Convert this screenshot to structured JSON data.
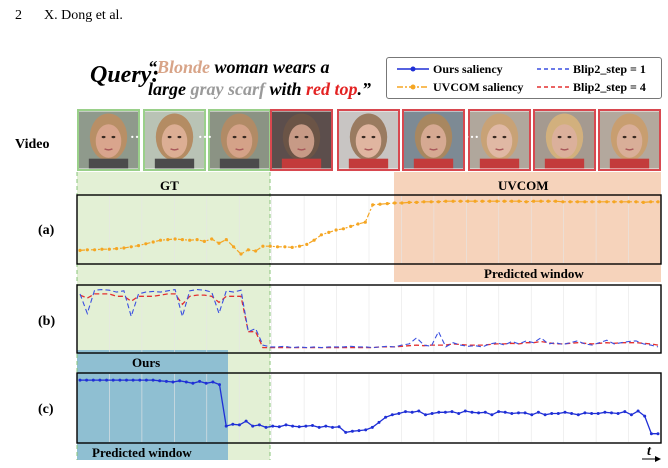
{
  "page_header": {
    "number": "2",
    "authors": "X. Dong et al."
  },
  "query": {
    "label": "Query:",
    "open_quote": "“",
    "word_blonde": "Blonde",
    "part1": " woman wears a",
    "part2": "large ",
    "word_gray_scarf": "gray scarf",
    "part3": " with ",
    "word_red_top": "red top",
    "close_quote": ".”"
  },
  "legend": [
    {
      "label": "Ours saliency",
      "color": "#1f2fd6",
      "style": "solid-dot"
    },
    {
      "label": "Blip2_step = 1",
      "color": "#3a4fe0",
      "style": "dashed"
    },
    {
      "label": "UVCOM saliency",
      "color": "#f5a623",
      "style": "dashdot-dot"
    },
    {
      "label": "Blip2_step = 4",
      "color": "#e33030",
      "style": "dashed"
    }
  ],
  "video_label": "Video",
  "frames": [
    {
      "border": "green",
      "skin": "#d9a58d",
      "bg": "#8f9a8c",
      "hair": "#b88f66"
    },
    {
      "border": "green",
      "skin": "#dcae94",
      "bg": "#b9c3b5",
      "hair": "#b48c63"
    },
    {
      "border": "green",
      "skin": "#d4a288",
      "bg": "#8b9384",
      "hair": "#b18b66"
    },
    {
      "border": "red",
      "skin": "#c79a86",
      "bg": "#5c4e4c",
      "hair": "#6b5446"
    },
    {
      "border": "red",
      "skin": "#e0b5a0",
      "bg": "#c8c5c3",
      "hair": "#9a7b60"
    },
    {
      "border": "red",
      "skin": "#d6a992",
      "bg": "#7d8a94",
      "hair": "#a88760"
    },
    {
      "border": "red",
      "skin": "#e0b8a4",
      "bg": "#b0a79c",
      "hair": "#c8a276"
    },
    {
      "border": "red",
      "skin": "#dbb09b",
      "bg": "#a59a90",
      "hair": "#d2b07d"
    },
    {
      "border": "red",
      "skin": "#d9ae98",
      "bg": "#b3a89d",
      "hair": "#c89e70"
    }
  ],
  "dots_between": "…",
  "gt_label": "GT",
  "uvcom_label": "UVCOM",
  "predicted_window_label": "Predicted window",
  "ours_label": "Ours",
  "row_labels": [
    "(a)",
    "(b)",
    "(c)"
  ],
  "time_label": "t",
  "colors": {
    "gt_band": "#e3f0d5",
    "uvcom_band": "#f6d3bb",
    "ours_band": "#8fbfd2",
    "ours_line": "#1f2fd6",
    "uvcom_line": "#f5a623",
    "blip1_line": "#3a4fe0",
    "blip4_line": "#e33030"
  },
  "chart_data": [
    {
      "type": "line",
      "panel": "(a)",
      "series": [
        {
          "name": "UVCOM saliency",
          "values": [
            0.16,
            0.17,
            0.17,
            0.18,
            0.18,
            0.19,
            0.2,
            0.22,
            0.24,
            0.27,
            0.3,
            0.33,
            0.34,
            0.35,
            0.34,
            0.33,
            0.34,
            0.31,
            0.35,
            0.28,
            0.34,
            0.22,
            0.1,
            0.17,
            0.15,
            0.23,
            0.23,
            0.22,
            0.22,
            0.21,
            0.23,
            0.26,
            0.33,
            0.42,
            0.46,
            0.5,
            0.52,
            0.56,
            0.6,
            0.63,
            0.92,
            0.93,
            0.94,
            0.95,
            0.95,
            0.96,
            0.96,
            0.97,
            0.97,
            0.97,
            0.98,
            0.98,
            0.98,
            0.98,
            0.98,
            0.98,
            0.98,
            0.98,
            0.98,
            0.98,
            0.98,
            0.97,
            0.98,
            0.98,
            0.98,
            0.98,
            0.97,
            0.97,
            0.97,
            0.97,
            0.97,
            0.97,
            0.97,
            0.97,
            0.97,
            0.97,
            0.97,
            0.96,
            0.97,
            0.97
          ]
        }
      ]
    },
    {
      "type": "line",
      "panel": "(b)",
      "series": [
        {
          "name": "Blip2_step = 1",
          "values": [
            0.92,
            0.6,
            0.98,
            0.99,
            0.98,
            0.95,
            0.97,
            0.55,
            0.92,
            0.95,
            0.96,
            0.95,
            0.97,
            0.99,
            0.55,
            0.97,
            0.99,
            0.98,
            0.95,
            0.6,
            0.97,
            0.95,
            0.98,
            0.3,
            0.35,
            0.08,
            0.05,
            0.05,
            0.06,
            0.04,
            0.05,
            0.04,
            0.05,
            0.04,
            0.05,
            0.05,
            0.05,
            0.06,
            0.05,
            0.05,
            0.04,
            0.05,
            0.06,
            0.05,
            0.08,
            0.1,
            0.2,
            0.08,
            0.06,
            0.3,
            0.05,
            0.12,
            0.08,
            0.06,
            0.07,
            0.05,
            0.1,
            0.12,
            0.08,
            0.14,
            0.1,
            0.15,
            0.12,
            0.2,
            0.1,
            0.12,
            0.09,
            0.12,
            0.15,
            0.1,
            0.08,
            0.12,
            0.16,
            0.1,
            0.12,
            0.14,
            0.15,
            0.1,
            0.08,
            0.05
          ]
        },
        {
          "name": "Blip2_step = 4",
          "values": [
            0.9,
            0.85,
            0.92,
            0.92,
            0.92,
            0.88,
            0.88,
            0.8,
            0.88,
            0.88,
            0.88,
            0.9,
            0.92,
            0.92,
            0.75,
            0.88,
            0.9,
            0.9,
            0.88,
            0.78,
            0.88,
            0.88,
            0.88,
            0.3,
            0.3,
            0.04,
            0.04,
            0.04,
            0.04,
            0.04,
            0.04,
            0.04,
            0.04,
            0.04,
            0.04,
            0.04,
            0.04,
            0.04,
            0.04,
            0.04,
            0.04,
            0.05,
            0.05,
            0.05,
            0.06,
            0.07,
            0.08,
            0.07,
            0.08,
            0.08,
            0.08,
            0.1,
            0.09,
            0.08,
            0.08,
            0.08,
            0.09,
            0.1,
            0.1,
            0.11,
            0.1,
            0.12,
            0.12,
            0.14,
            0.12,
            0.1,
            0.1,
            0.11,
            0.12,
            0.11,
            0.1,
            0.11,
            0.12,
            0.11,
            0.12,
            0.12,
            0.12,
            0.11,
            0.1,
            0.08
          ]
        }
      ]
    },
    {
      "type": "line",
      "panel": "(c)",
      "series": [
        {
          "name": "Ours saliency",
          "values": [
            0.95,
            0.95,
            0.95,
            0.95,
            0.95,
            0.95,
            0.95,
            0.95,
            0.95,
            0.95,
            0.95,
            0.95,
            0.94,
            0.93,
            0.92,
            0.94,
            0.92,
            0.9,
            0.93,
            0.9,
            0.92,
            0.88,
            0.22,
            0.25,
            0.24,
            0.3,
            0.22,
            0.24,
            0.2,
            0.22,
            0.21,
            0.24,
            0.22,
            0.21,
            0.22,
            0.23,
            0.2,
            0.22,
            0.2,
            0.21,
            0.12,
            0.14,
            0.15,
            0.16,
            0.2,
            0.28,
            0.36,
            0.4,
            0.42,
            0.45,
            0.44,
            0.46,
            0.4,
            0.42,
            0.44,
            0.44,
            0.45,
            0.42,
            0.46,
            0.44,
            0.43,
            0.44,
            0.4,
            0.45,
            0.44,
            0.42,
            0.43,
            0.43,
            0.4,
            0.44,
            0.4,
            0.42,
            0.42,
            0.44,
            0.42,
            0.4,
            0.43,
            0.42,
            0.42,
            0.44,
            0.43,
            0.42,
            0.45,
            0.4,
            0.46,
            0.38,
            0.1,
            0.1
          ]
        }
      ]
    }
  ]
}
